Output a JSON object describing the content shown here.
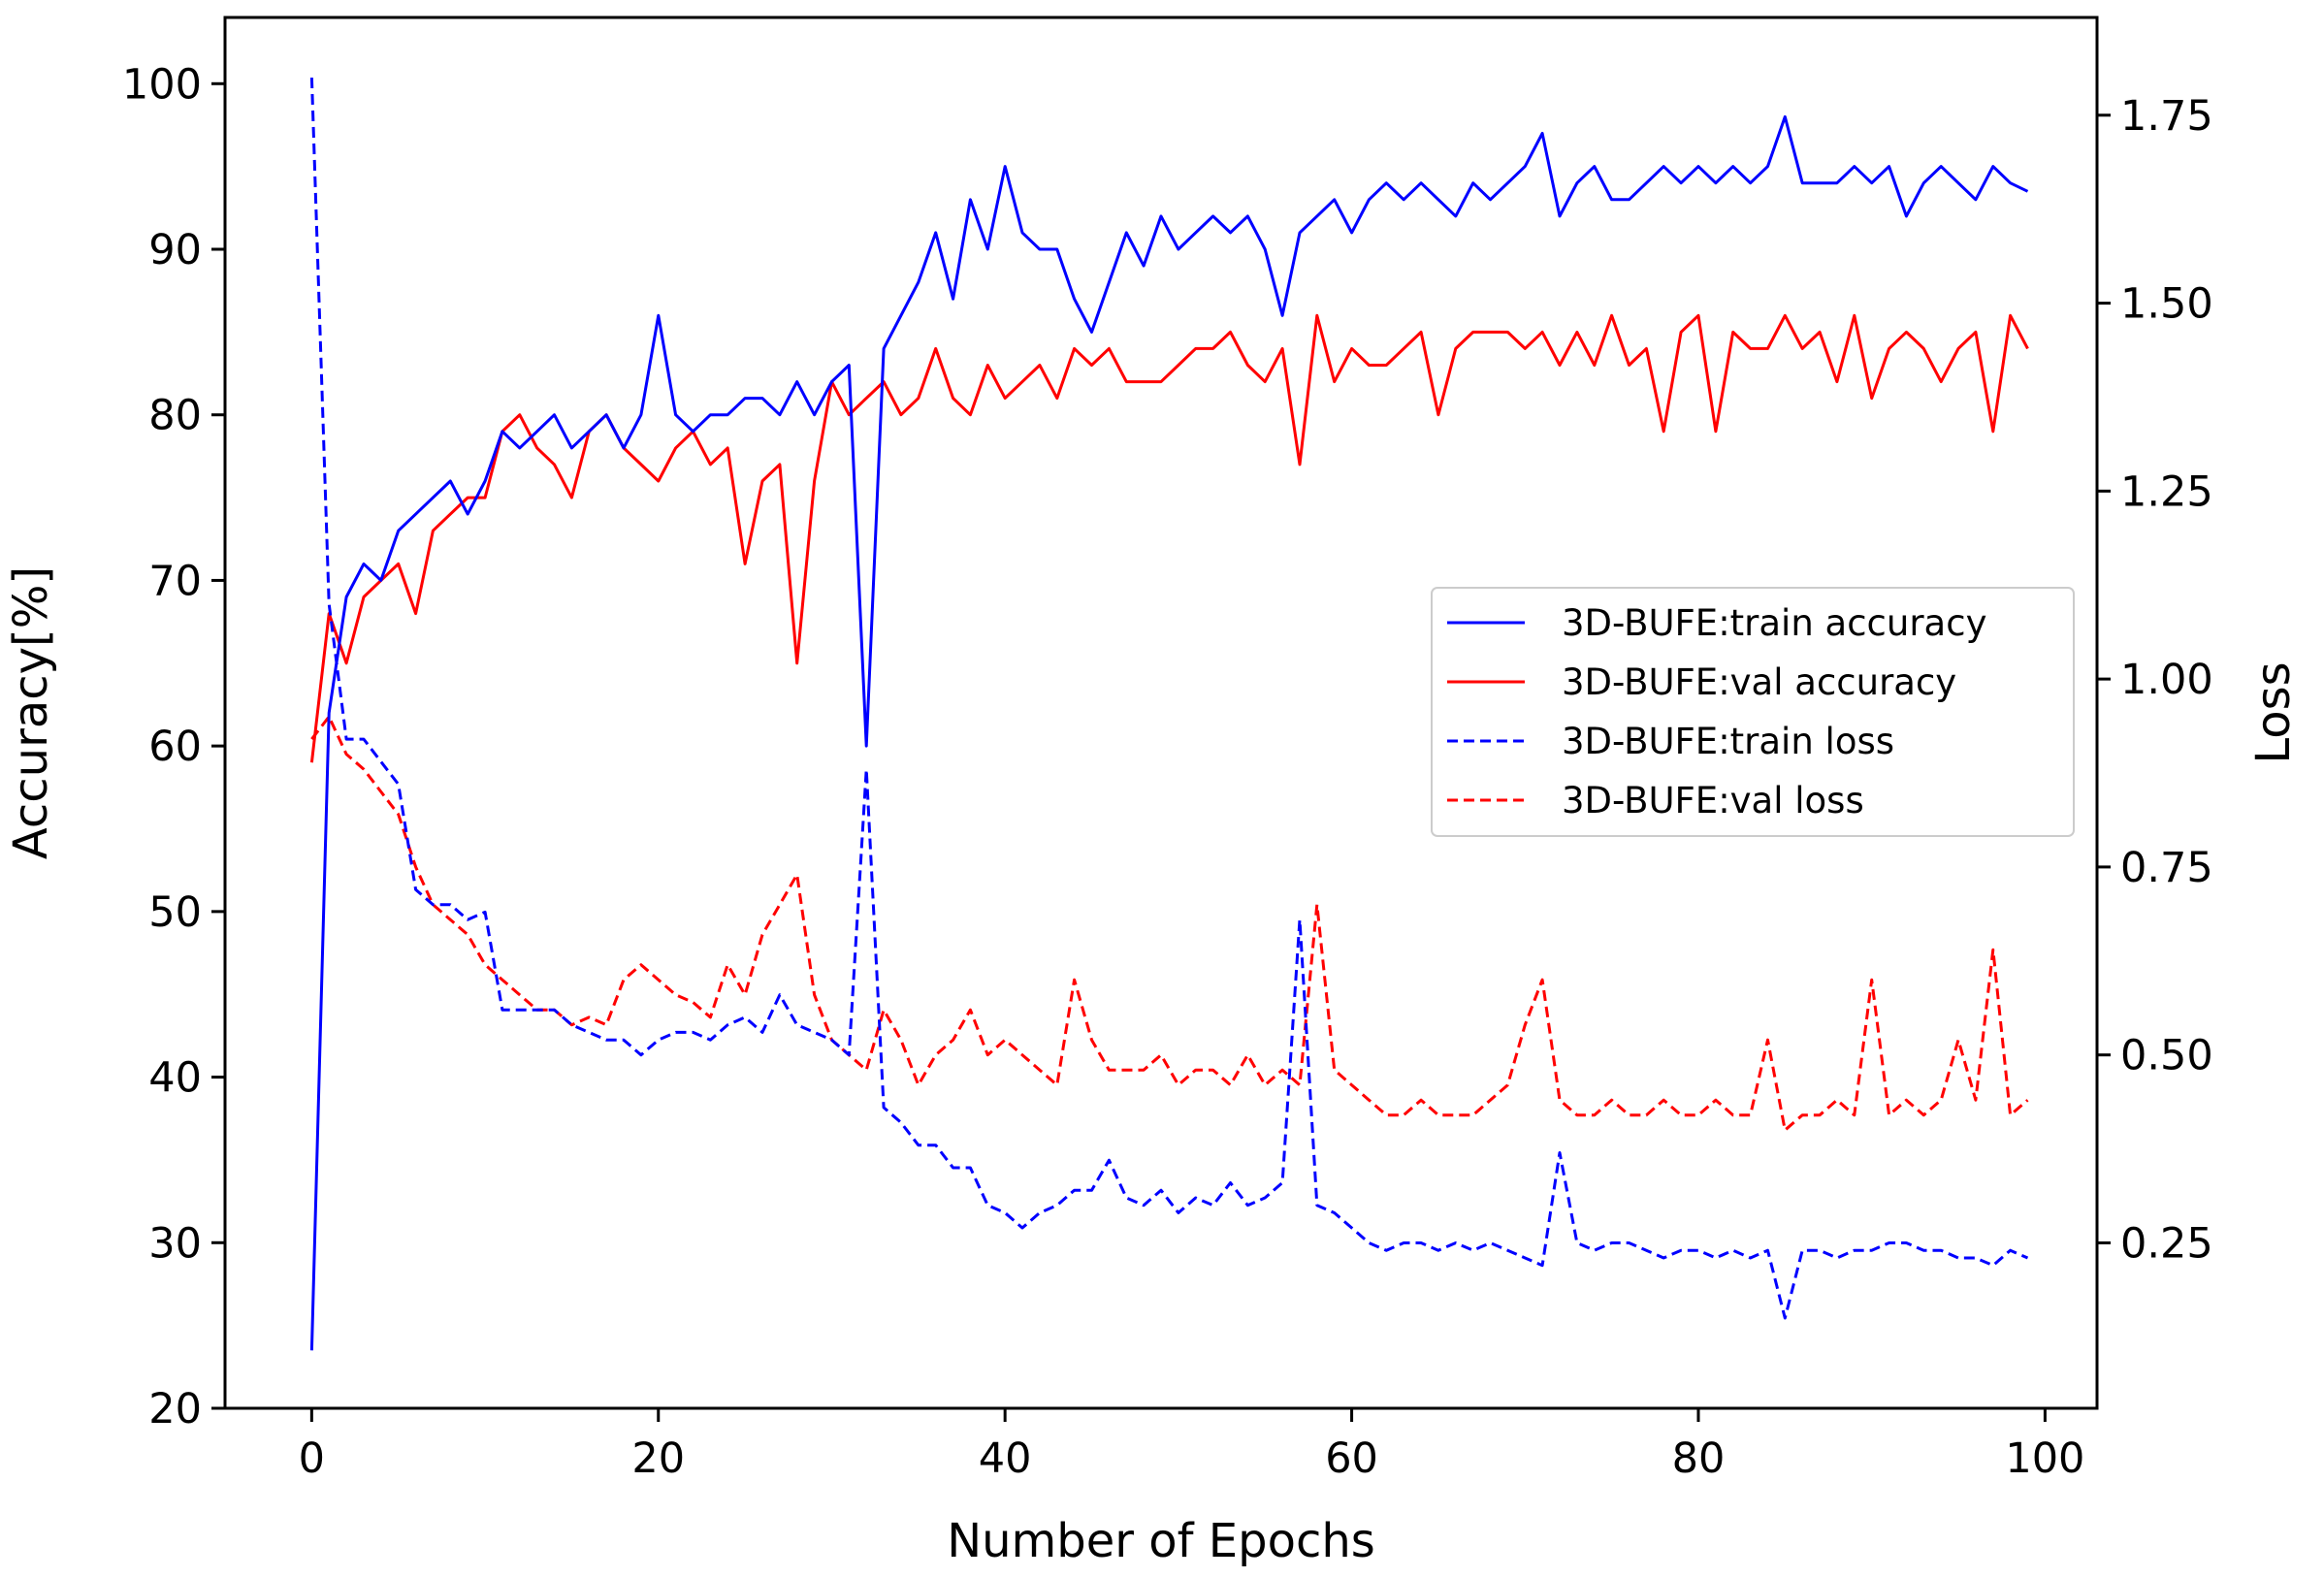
{
  "chart_data": {
    "type": "line",
    "xlabel": "Number of Epochs",
    "ylabel": "Accuracy[%]",
    "y2label": "Loss",
    "xlim": [
      -5,
      103
    ],
    "ylim": [
      20,
      104
    ],
    "y2lim": [
      0.03,
      1.88
    ],
    "xticks": [
      0,
      20,
      40,
      60,
      80,
      100
    ],
    "yticks": [
      20,
      30,
      40,
      50,
      60,
      70,
      80,
      90,
      100
    ],
    "y2ticks": [
      "0.25",
      "0.50",
      "0.75",
      "1.00",
      "1.25",
      "1.50",
      "1.75"
    ],
    "legend_position": "center-right",
    "series": [
      {
        "name": "3D-BUFE:train accuracy",
        "axis": "left",
        "color": "#0000ff",
        "style": "solid",
        "values": [
          23.5,
          62,
          69,
          71,
          70,
          73,
          74,
          75,
          76,
          74,
          76,
          79,
          78,
          79,
          80,
          78,
          79,
          80,
          78,
          80,
          86,
          80,
          79,
          80,
          80,
          81,
          81,
          80,
          82,
          80,
          82,
          83,
          60,
          84,
          86,
          88,
          91,
          87,
          93,
          90,
          95,
          91,
          90,
          90,
          87,
          85,
          88,
          91,
          89,
          92,
          90,
          91,
          92,
          91,
          92,
          90,
          86,
          91,
          92,
          93,
          91,
          93,
          94,
          93,
          94,
          93,
          92,
          94,
          93,
          94,
          95,
          97,
          92,
          94,
          95,
          93,
          93,
          94,
          95,
          94,
          95,
          94,
          95,
          94,
          95,
          98,
          94,
          94,
          94,
          95,
          94,
          95,
          92,
          94,
          95,
          94,
          93,
          95,
          94,
          93.5
        ]
      },
      {
        "name": "3D-BUFE:val accuracy",
        "axis": "left",
        "color": "#ff0000",
        "style": "solid",
        "values": [
          59,
          68,
          65,
          69,
          70,
          71,
          68,
          73,
          74,
          75,
          75,
          79,
          80,
          78,
          77,
          75,
          79,
          80,
          78,
          77,
          76,
          78,
          79,
          77,
          78,
          71,
          76,
          77,
          65,
          76,
          82,
          80,
          81,
          82,
          80,
          81,
          84,
          81,
          80,
          83,
          81,
          82,
          83,
          81,
          84,
          83,
          84,
          82,
          82,
          82,
          83,
          84,
          84,
          85,
          83,
          82,
          84,
          77,
          86,
          82,
          84,
          83,
          83,
          84,
          85,
          80,
          84,
          85,
          85,
          85,
          84,
          85,
          83,
          85,
          83,
          86,
          83,
          84,
          79,
          85,
          86,
          79,
          85,
          84,
          84,
          86,
          84,
          85,
          82,
          86,
          81,
          84,
          85,
          84,
          82,
          84,
          85,
          79,
          86,
          84
        ]
      },
      {
        "name": "3D-BUFE:train loss",
        "axis": "right",
        "color": "#0000ff",
        "style": "dashed",
        "values": [
          1.8,
          1.1,
          0.92,
          0.92,
          0.89,
          0.86,
          0.72,
          0.7,
          0.7,
          0.68,
          0.69,
          0.56,
          0.56,
          0.56,
          0.56,
          0.54,
          0.53,
          0.52,
          0.52,
          0.5,
          0.52,
          0.53,
          0.53,
          0.52,
          0.54,
          0.55,
          0.53,
          0.58,
          0.54,
          0.53,
          0.52,
          0.5,
          0.88,
          0.43,
          0.41,
          0.38,
          0.38,
          0.35,
          0.35,
          0.3,
          0.29,
          0.27,
          0.29,
          0.3,
          0.32,
          0.32,
          0.36,
          0.31,
          0.3,
          0.32,
          0.29,
          0.31,
          0.3,
          0.33,
          0.3,
          0.31,
          0.33,
          0.68,
          0.3,
          0.29,
          0.27,
          0.25,
          0.24,
          0.25,
          0.25,
          0.24,
          0.25,
          0.24,
          0.25,
          0.24,
          0.23,
          0.22,
          0.37,
          0.25,
          0.24,
          0.25,
          0.25,
          0.24,
          0.23,
          0.24,
          0.24,
          0.23,
          0.24,
          0.23,
          0.24,
          0.15,
          0.24,
          0.24,
          0.23,
          0.24,
          0.24,
          0.25,
          0.25,
          0.24,
          0.24,
          0.23,
          0.23,
          0.22,
          0.24,
          0.23
        ]
      },
      {
        "name": "3D-BUFE:val loss",
        "axis": "right",
        "color": "#ff0000",
        "style": "dashed",
        "values": [
          0.92,
          0.95,
          0.9,
          0.88,
          0.85,
          0.82,
          0.75,
          0.7,
          0.68,
          0.66,
          0.62,
          0.6,
          0.58,
          0.56,
          0.56,
          0.54,
          0.55,
          0.54,
          0.6,
          0.62,
          0.6,
          0.58,
          0.57,
          0.55,
          0.62,
          0.58,
          0.66,
          0.7,
          0.74,
          0.58,
          0.52,
          0.5,
          0.48,
          0.56,
          0.52,
          0.46,
          0.5,
          0.52,
          0.56,
          0.5,
          0.52,
          0.5,
          0.48,
          0.46,
          0.6,
          0.52,
          0.48,
          0.48,
          0.48,
          0.5,
          0.46,
          0.48,
          0.48,
          0.46,
          0.5,
          0.46,
          0.48,
          0.46,
          0.7,
          0.48,
          0.46,
          0.44,
          0.42,
          0.42,
          0.44,
          0.42,
          0.42,
          0.42,
          0.44,
          0.46,
          0.54,
          0.6,
          0.44,
          0.42,
          0.42,
          0.44,
          0.42,
          0.42,
          0.44,
          0.42,
          0.42,
          0.44,
          0.42,
          0.42,
          0.52,
          0.4,
          0.42,
          0.42,
          0.44,
          0.42,
          0.6,
          0.42,
          0.44,
          0.42,
          0.44,
          0.52,
          0.44,
          0.64,
          0.42,
          0.44
        ]
      }
    ]
  }
}
